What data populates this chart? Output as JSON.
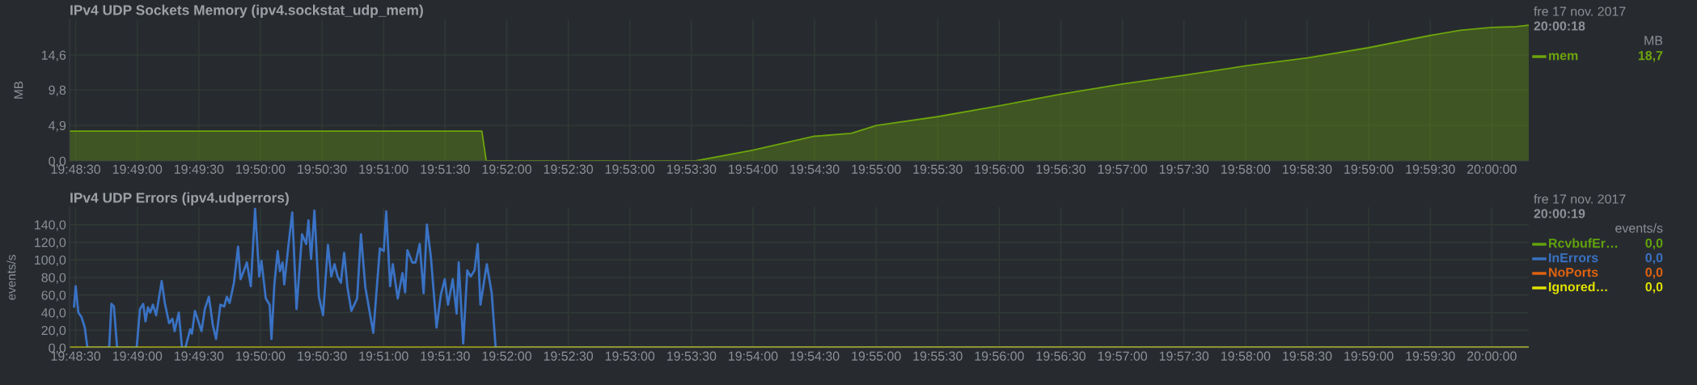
{
  "chart_data": [
    {
      "type": "area",
      "title": "IPv4 UDP Sockets Memory (ipv4.sockstat_udp_mem)",
      "ylabel": "MB",
      "legend": "right",
      "grid": true,
      "line_style": "solid",
      "marker": "none",
      "annotations": [
        "fre 17 nov. 2017",
        "20:00:18",
        "MB",
        "18,7"
      ],
      "xlim": [
        19.8075,
        20.005
      ],
      "ylim": [
        0,
        19.5
      ],
      "xticks": [
        {
          "value": 19.80833,
          "label": "19:48:30"
        },
        {
          "value": 19.81667,
          "label": "19:49:00"
        },
        {
          "value": 19.825,
          "label": "19:49:30"
        },
        {
          "value": 19.83333,
          "label": "19:50:00"
        },
        {
          "value": 19.84167,
          "label": "19:50:30"
        },
        {
          "value": 19.85,
          "label": "19:51:00"
        },
        {
          "value": 19.85833,
          "label": "19:51:30"
        },
        {
          "value": 19.86667,
          "label": "19:52:00"
        },
        {
          "value": 19.875,
          "label": "19:52:30"
        },
        {
          "value": 19.88333,
          "label": "19:53:00"
        },
        {
          "value": 19.89167,
          "label": "19:53:30"
        },
        {
          "value": 19.9,
          "label": "19:54:00"
        },
        {
          "value": 19.90833,
          "label": "19:54:30"
        },
        {
          "value": 19.91667,
          "label": "19:55:00"
        },
        {
          "value": 19.925,
          "label": "19:55:30"
        },
        {
          "value": 19.93333,
          "label": "19:56:00"
        },
        {
          "value": 19.94167,
          "label": "19:56:30"
        },
        {
          "value": 19.95,
          "label": "19:57:00"
        },
        {
          "value": 19.95833,
          "label": "19:57:30"
        },
        {
          "value": 19.96667,
          "label": "19:58:00"
        },
        {
          "value": 19.975,
          "label": "19:58:30"
        },
        {
          "value": 19.98333,
          "label": "19:59:00"
        },
        {
          "value": 19.99167,
          "label": "19:59:30"
        },
        {
          "value": 20.0,
          "label": "20:00:00"
        }
      ],
      "yticks": [
        {
          "value": 0,
          "label": "0,0"
        },
        {
          "value": 4.9,
          "label": "4,9"
        },
        {
          "value": 9.8,
          "label": "9,8"
        },
        {
          "value": 14.6,
          "label": "14,6"
        }
      ],
      "series": [
        {
          "name": "mem",
          "color": "#6ea40c",
          "x": [
            19.8075,
            19.8633,
            19.8639,
            19.8922,
            19.9,
            19.9083,
            19.9133,
            19.9167,
            19.925,
            19.9333,
            19.9417,
            19.95,
            19.9583,
            19.9667,
            19.975,
            19.9833,
            19.9917,
            19.9958,
            20.0,
            20.0033,
            20.005
          ],
          "values": [
            4.1,
            4.1,
            0,
            0,
            1.5,
            3.4,
            3.8,
            4.9,
            6.1,
            7.6,
            9.2,
            10.6,
            11.8,
            13.1,
            14.2,
            15.6,
            17.3,
            18.0,
            18.4,
            18.5,
            18.7
          ]
        }
      ]
    },
    {
      "type": "line",
      "title": "IPv4 UDP Errors (ipv4.udperrors)",
      "ylabel": "events/s",
      "legend": "right",
      "grid": true,
      "line_style": "solid",
      "marker": "none",
      "annotations": [
        "fre 17 nov. 2017",
        "20:00:19",
        "events/s",
        "0,0",
        "0,0",
        "0,0",
        "0,0"
      ],
      "xlim": [
        19.8075,
        20.005
      ],
      "ylim": [
        0,
        160
      ],
      "xticks": [
        {
          "value": 19.80833,
          "label": "19:48:30"
        },
        {
          "value": 19.81667,
          "label": "19:49:00"
        },
        {
          "value": 19.825,
          "label": "19:49:30"
        },
        {
          "value": 19.83333,
          "label": "19:50:00"
        },
        {
          "value": 19.84167,
          "label": "19:50:30"
        },
        {
          "value": 19.85,
          "label": "19:51:00"
        },
        {
          "value": 19.85833,
          "label": "19:51:30"
        },
        {
          "value": 19.86667,
          "label": "19:52:00"
        },
        {
          "value": 19.875,
          "label": "19:52:30"
        },
        {
          "value": 19.88333,
          "label": "19:53:00"
        },
        {
          "value": 19.89167,
          "label": "19:53:30"
        },
        {
          "value": 19.9,
          "label": "19:54:00"
        },
        {
          "value": 19.90833,
          "label": "19:54:30"
        },
        {
          "value": 19.91667,
          "label": "19:55:00"
        },
        {
          "value": 19.925,
          "label": "19:55:30"
        },
        {
          "value": 19.93333,
          "label": "19:56:00"
        },
        {
          "value": 19.94167,
          "label": "19:56:30"
        },
        {
          "value": 19.95,
          "label": "19:57:00"
        },
        {
          "value": 19.95833,
          "label": "19:57:30"
        },
        {
          "value": 19.96667,
          "label": "19:58:00"
        },
        {
          "value": 19.975,
          "label": "19:58:30"
        },
        {
          "value": 19.98333,
          "label": "19:59:00"
        },
        {
          "value": 19.99167,
          "label": "19:59:30"
        },
        {
          "value": 20.0,
          "label": "20:00:00"
        }
      ],
      "yticks": [
        {
          "value": 0,
          "label": "0,0"
        },
        {
          "value": 20,
          "label": "20,0"
        },
        {
          "value": 40,
          "label": "40,0"
        },
        {
          "value": 60,
          "label": "60,0"
        },
        {
          "value": 80,
          "label": "80,0"
        },
        {
          "value": 100,
          "label": "100,0"
        },
        {
          "value": 120,
          "label": "120,0"
        },
        {
          "value": 140,
          "label": "140,0"
        }
      ],
      "series": [
        {
          "name": "RcvbufEr…",
          "color": "#62a30c"
        },
        {
          "name": "InErrors",
          "color": "#3a72c4",
          "x": [
            19.80811,
            19.80833,
            19.80869,
            19.80911,
            19.80956,
            19.80992,
            19.81286,
            19.81317,
            19.8135,
            19.81394,
            19.81658,
            19.81703,
            19.81747,
            19.81778,
            19.81811,
            19.81842,
            19.81878,
            19.81922,
            19.81997,
            19.82039,
            19.82097,
            19.82142,
            19.82172,
            19.82228,
            19.82272,
            19.82317,
            19.82383,
            19.82406,
            19.82447,
            19.82536,
            19.82581,
            19.82636,
            19.82689,
            19.82733,
            19.82792,
            19.82844,
            19.82878,
            19.82917,
            19.82975,
            19.83031,
            19.83064,
            19.83106,
            19.8315,
            19.83203,
            19.83261,
            19.83317,
            19.83347,
            19.83406,
            19.83458,
            19.83483,
            19.83522,
            19.83567,
            19.83597,
            19.83633,
            19.83656,
            19.83708,
            19.83764,
            19.83822,
            19.83897,
            19.83953,
            19.83983,
            19.84019,
            19.84064,
            19.84125,
            19.84181,
            19.84247,
            19.84292,
            19.84336,
            19.84378,
            19.84422,
            19.84467,
            19.84511,
            19.84564,
            19.84642,
            19.84694,
            19.84753,
            19.84861,
            19.8495,
            19.85003,
            19.85036,
            19.85089,
            19.85125,
            19.85192,
            19.85256,
            19.85292,
            19.85322,
            19.85389,
            19.85433,
            19.85489,
            19.85542,
            19.85586,
            19.85642,
            19.85717,
            19.85775,
            19.85828,
            19.85872,
            19.85936,
            19.85989,
            19.86017,
            19.86078,
            19.86133,
            19.86178,
            19.86231,
            19.86275,
            19.86311,
            19.86397,
            19.86464,
            19.86517,
            20.005
          ],
          "values": [
            47,
            70,
            40,
            35,
            23,
            0,
            0,
            50,
            47,
            0,
            0,
            44,
            50,
            30,
            46,
            40,
            49,
            37,
            76,
            51,
            28,
            33,
            19,
            40,
            0,
            0,
            21,
            16,
            42,
            19,
            44,
            58,
            26,
            10,
            49,
            47,
            58,
            51,
            74,
            115,
            78,
            87,
            97,
            70,
            158,
            81,
            99,
            56,
            49,
            10,
            72,
            110,
            87,
            97,
            72,
            113,
            154,
            44,
            129,
            118,
            145,
            101,
            156,
            58,
            37,
            117,
            81,
            95,
            81,
            74,
            108,
            69,
            42,
            56,
            129,
            69,
            17,
            113,
            110,
            155,
            70,
            95,
            56,
            85,
            63,
            111,
            97,
            97,
            118,
            62,
            140,
            102,
            23,
            60,
            78,
            49,
            78,
            39,
            97,
            5,
            88,
            81,
            88,
            118,
            49,
            95,
            62,
            0,
            0
          ]
        },
        {
          "name": "NoPorts",
          "color": "#e0620f"
        },
        {
          "name": "Ignored…",
          "color": "#e2e200",
          "x": [
            19.8075,
            20.005
          ],
          "values": [
            0,
            0
          ]
        }
      ]
    }
  ]
}
